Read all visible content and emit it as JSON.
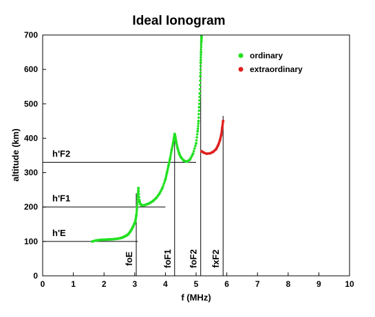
{
  "chart_data": {
    "type": "scatter",
    "title": "Ideal Ionogram",
    "xlabel": "f (MHz)",
    "ylabel": "altitude (km)",
    "xlim": [
      0,
      10
    ],
    "ylim": [
      0,
      700
    ],
    "xticks": [
      0,
      1,
      2,
      3,
      4,
      5,
      6,
      7,
      8,
      9,
      10
    ],
    "yticks": [
      0,
      100,
      200,
      300,
      400,
      500,
      600,
      700
    ],
    "grid": false,
    "legend_position": "top-right",
    "series": [
      {
        "name": "ordinary",
        "color": "#22e022",
        "x": [
          1.62,
          1.75,
          1.85,
          1.95,
          2.05,
          2.15,
          2.25,
          2.35,
          2.45,
          2.55,
          2.62,
          2.68,
          2.75,
          2.8,
          2.85,
          2.9,
          2.94,
          2.98,
          3.02,
          3.05,
          3.08,
          3.1,
          3.12,
          3.15,
          3.18,
          3.22,
          3.3,
          3.4,
          3.5,
          3.6,
          3.7,
          3.8,
          3.9,
          4.0,
          4.05,
          4.1,
          4.15,
          4.2,
          4.25,
          4.28,
          4.3,
          4.32,
          4.35,
          4.4,
          4.45,
          4.5,
          4.6,
          4.7,
          4.8,
          4.9,
          5.0,
          5.05,
          5.08,
          5.1,
          5.12,
          5.14,
          5.15,
          5.16,
          5.17,
          5.18
        ],
        "y": [
          100,
          103,
          104,
          105,
          105,
          106,
          106,
          107,
          108,
          110,
          112,
          115,
          118,
          122,
          128,
          135,
          142,
          150,
          158,
          175,
          200,
          230,
          255,
          220,
          210,
          205,
          205,
          208,
          212,
          218,
          226,
          238,
          255,
          280,
          300,
          320,
          340,
          365,
          385,
          400,
          412,
          405,
          390,
          370,
          355,
          345,
          335,
          332,
          338,
          355,
          385,
          420,
          450,
          490,
          530,
          580,
          620,
          650,
          680,
          695
        ]
      },
      {
        "name": "extraordinary",
        "color": "#e02020",
        "x": [
          5.18,
          5.25,
          5.35,
          5.45,
          5.55,
          5.65,
          5.72,
          5.78,
          5.82,
          5.85,
          5.88
        ],
        "y": [
          362,
          358,
          355,
          356,
          360,
          368,
          380,
          395,
          410,
          430,
          450
        ]
      }
    ],
    "reference_lines": {
      "horizontal": [
        {
          "label": "h'E",
          "y": 100,
          "x_end": 3.1
        },
        {
          "label": "h'F1",
          "y": 200,
          "x_end": 4.0
        },
        {
          "label": "h'F2",
          "y": 330,
          "x_end": 5.0
        }
      ],
      "vertical": [
        {
          "label": "foE",
          "x": 3.05,
          "y_top": 240
        },
        {
          "label": "foF1",
          "x": 4.3,
          "y_top": 410
        },
        {
          "label": "foF2",
          "x": 5.15,
          "y_top": 700
        },
        {
          "label": "fxF2",
          "x": 5.88,
          "y_top": 465
        }
      ]
    }
  }
}
